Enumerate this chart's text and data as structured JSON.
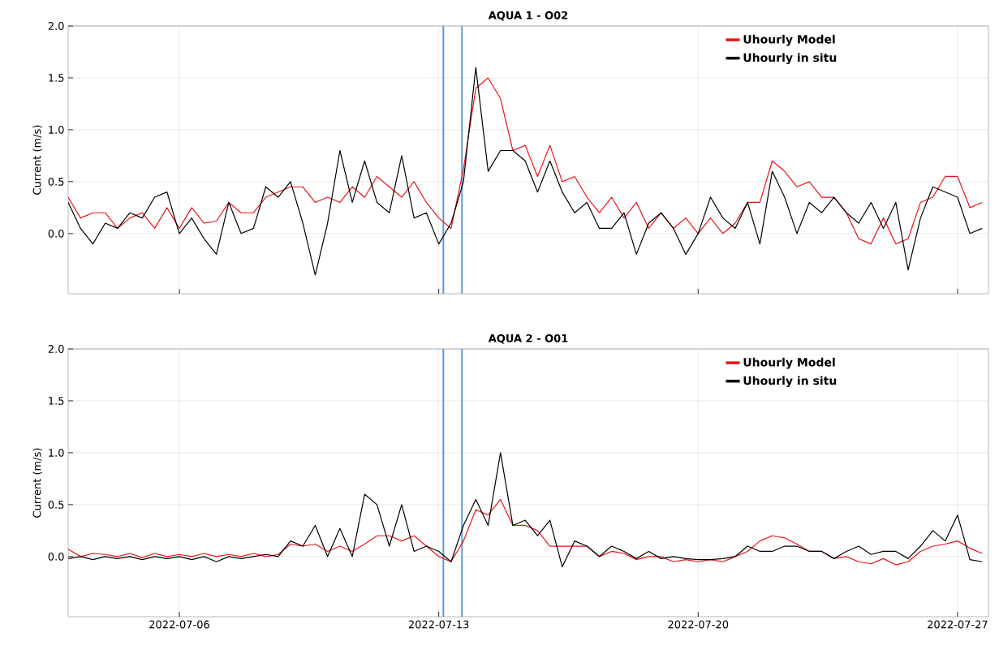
{
  "chart_data": [
    {
      "type": "line",
      "title": "AQUA 1 - O02",
      "ylabel": "Current (m/s)",
      "x": [
        "2022-07-03T00:00",
        "2022-07-03T08:00",
        "2022-07-03T16:00",
        "2022-07-04T00:00",
        "2022-07-04T08:00",
        "2022-07-04T16:00",
        "2022-07-05T00:00",
        "2022-07-05T08:00",
        "2022-07-05T16:00",
        "2022-07-06T00:00",
        "2022-07-06T08:00",
        "2022-07-06T16:00",
        "2022-07-07T00:00",
        "2022-07-07T08:00",
        "2022-07-07T16:00",
        "2022-07-08T00:00",
        "2022-07-08T08:00",
        "2022-07-08T16:00",
        "2022-07-09T00:00",
        "2022-07-09T08:00",
        "2022-07-09T16:00",
        "2022-07-10T00:00",
        "2022-07-10T08:00",
        "2022-07-10T16:00",
        "2022-07-11T00:00",
        "2022-07-11T08:00",
        "2022-07-11T16:00",
        "2022-07-12T00:00",
        "2022-07-12T08:00",
        "2022-07-12T16:00",
        "2022-07-13T00:00",
        "2022-07-13T08:00",
        "2022-07-13T16:00",
        "2022-07-14T00:00",
        "2022-07-14T08:00",
        "2022-07-14T16:00",
        "2022-07-15T00:00",
        "2022-07-15T08:00",
        "2022-07-15T16:00",
        "2022-07-16T00:00",
        "2022-07-16T08:00",
        "2022-07-16T16:00",
        "2022-07-17T00:00",
        "2022-07-17T08:00",
        "2022-07-17T16:00",
        "2022-07-18T00:00",
        "2022-07-18T08:00",
        "2022-07-18T16:00",
        "2022-07-19T00:00",
        "2022-07-19T08:00",
        "2022-07-19T16:00",
        "2022-07-20T00:00",
        "2022-07-20T08:00",
        "2022-07-20T16:00",
        "2022-07-21T00:00",
        "2022-07-21T08:00",
        "2022-07-21T16:00",
        "2022-07-22T00:00",
        "2022-07-22T08:00",
        "2022-07-22T16:00",
        "2022-07-23T00:00",
        "2022-07-23T08:00",
        "2022-07-23T16:00",
        "2022-07-24T00:00",
        "2022-07-24T08:00",
        "2022-07-24T16:00",
        "2022-07-25T00:00",
        "2022-07-25T08:00",
        "2022-07-25T16:00",
        "2022-07-26T00:00",
        "2022-07-26T08:00",
        "2022-07-26T16:00",
        "2022-07-27T00:00",
        "2022-07-27T08:00",
        "2022-07-27T16:00"
      ],
      "series": [
        {
          "name": "Uhourly Model",
          "color": "#e8141b",
          "values": [
            0.35,
            0.15,
            0.2,
            0.2,
            0.05,
            0.15,
            0.2,
            0.05,
            0.25,
            0.05,
            0.25,
            0.1,
            0.12,
            0.3,
            0.2,
            0.2,
            0.35,
            0.4,
            0.45,
            0.45,
            0.3,
            0.35,
            0.3,
            0.45,
            0.35,
            0.55,
            0.45,
            0.35,
            0.5,
            0.3,
            0.15,
            0.05,
            0.62,
            1.4,
            1.5,
            1.3,
            0.8,
            0.85,
            0.55,
            0.85,
            0.5,
            0.55,
            0.35,
            0.2,
            0.35,
            0.15,
            0.3,
            0.05,
            0.2,
            0.05,
            0.15,
            0.0,
            0.15,
            0.0,
            0.1,
            0.3,
            0.3,
            0.7,
            0.6,
            0.45,
            0.5,
            0.35,
            0.35,
            0.2,
            -0.05,
            -0.1,
            0.15,
            -0.1,
            -0.05,
            0.3,
            0.35,
            0.55,
            0.55,
            0.25,
            0.3
          ]
        },
        {
          "name": "Uhourly in situ",
          "color": "#000000",
          "values": [
            0.3,
            0.05,
            -0.1,
            0.1,
            0.05,
            0.2,
            0.15,
            0.35,
            0.4,
            0.0,
            0.15,
            -0.05,
            -0.2,
            0.3,
            0.0,
            0.05,
            0.45,
            0.35,
            0.5,
            0.1,
            -0.4,
            0.1,
            0.8,
            0.3,
            0.7,
            0.3,
            0.2,
            0.75,
            0.15,
            0.2,
            -0.1,
            0.1,
            0.5,
            1.6,
            0.6,
            0.8,
            0.8,
            0.7,
            0.4,
            0.7,
            0.4,
            0.2,
            0.3,
            0.05,
            0.05,
            0.2,
            -0.2,
            0.1,
            0.2,
            0.05,
            -0.2,
            0.0,
            0.35,
            0.15,
            0.05,
            0.3,
            -0.1,
            0.6,
            0.35,
            0.0,
            0.3,
            0.2,
            0.35,
            0.2,
            0.1,
            0.3,
            0.05,
            0.3,
            -0.35,
            0.15,
            0.45,
            0.4,
            0.35,
            0.0,
            0.05
          ]
        }
      ],
      "xlim": [
        "2022-07-03T00:00",
        "2022-07-27T20:00"
      ],
      "xticks": [
        {
          "value": "2022-07-06",
          "label": null
        },
        {
          "value": "2022-07-13",
          "label": null
        },
        {
          "value": "2022-07-20",
          "label": null
        },
        {
          "value": "2022-07-27",
          "label": null
        }
      ],
      "ylim": [
        -0.58,
        2.0
      ],
      "yticks": [
        {
          "value": 0,
          "label": "0.0"
        },
        {
          "value": 0.5,
          "label": "0.5"
        },
        {
          "value": 1.0,
          "label": "1.0"
        },
        {
          "value": 1.5,
          "label": "1.5"
        },
        {
          "value": 2.0,
          "label": "2.0"
        }
      ],
      "ref_lines": [
        {
          "axis": "x",
          "value": "2022-07-13T03:00",
          "color": "#5b9bd5"
        },
        {
          "axis": "x",
          "value": "2022-07-13T15:00",
          "color": "#5b9bd5"
        }
      ],
      "grid": true,
      "legend": "top right",
      "tick_labels": "y"
    },
    {
      "type": "line",
      "title": "AQUA 2 - O01",
      "ylabel": "Current (m/s)",
      "x": [
        "2022-07-03T00:00",
        "2022-07-03T08:00",
        "2022-07-03T16:00",
        "2022-07-04T00:00",
        "2022-07-04T08:00",
        "2022-07-04T16:00",
        "2022-07-05T00:00",
        "2022-07-05T08:00",
        "2022-07-05T16:00",
        "2022-07-06T00:00",
        "2022-07-06T08:00",
        "2022-07-06T16:00",
        "2022-07-07T00:00",
        "2022-07-07T08:00",
        "2022-07-07T16:00",
        "2022-07-08T00:00",
        "2022-07-08T08:00",
        "2022-07-08T16:00",
        "2022-07-09T00:00",
        "2022-07-09T08:00",
        "2022-07-09T16:00",
        "2022-07-10T00:00",
        "2022-07-10T08:00",
        "2022-07-10T16:00",
        "2022-07-11T00:00",
        "2022-07-11T08:00",
        "2022-07-11T16:00",
        "2022-07-12T00:00",
        "2022-07-12T08:00",
        "2022-07-12T16:00",
        "2022-07-13T00:00",
        "2022-07-13T08:00",
        "2022-07-13T16:00",
        "2022-07-14T00:00",
        "2022-07-14T08:00",
        "2022-07-14T16:00",
        "2022-07-15T00:00",
        "2022-07-15T08:00",
        "2022-07-15T16:00",
        "2022-07-16T00:00",
        "2022-07-16T08:00",
        "2022-07-16T16:00",
        "2022-07-17T00:00",
        "2022-07-17T08:00",
        "2022-07-17T16:00",
        "2022-07-18T00:00",
        "2022-07-18T08:00",
        "2022-07-18T16:00",
        "2022-07-19T00:00",
        "2022-07-19T08:00",
        "2022-07-19T16:00",
        "2022-07-20T00:00",
        "2022-07-20T08:00",
        "2022-07-20T16:00",
        "2022-07-21T00:00",
        "2022-07-21T08:00",
        "2022-07-21T16:00",
        "2022-07-22T00:00",
        "2022-07-22T08:00",
        "2022-07-22T16:00",
        "2022-07-23T00:00",
        "2022-07-23T08:00",
        "2022-07-23T16:00",
        "2022-07-24T00:00",
        "2022-07-24T08:00",
        "2022-07-24T16:00",
        "2022-07-25T00:00",
        "2022-07-25T08:00",
        "2022-07-25T16:00",
        "2022-07-26T00:00",
        "2022-07-26T08:00",
        "2022-07-26T16:00",
        "2022-07-27T00:00",
        "2022-07-27T08:00",
        "2022-07-27T16:00"
      ],
      "series": [
        {
          "name": "Uhourly Model",
          "color": "#e8141b",
          "values": [
            0.07,
            0.0,
            0.03,
            0.02,
            0.0,
            0.03,
            -0.01,
            0.03,
            0.0,
            0.02,
            0.0,
            0.03,
            0.0,
            0.02,
            0.0,
            0.03,
            0.0,
            0.02,
            0.12,
            0.1,
            0.12,
            0.05,
            0.1,
            0.05,
            0.12,
            0.2,
            0.2,
            0.15,
            0.2,
            0.1,
            0.0,
            -0.05,
            0.15,
            0.45,
            0.4,
            0.55,
            0.3,
            0.3,
            0.25,
            0.1,
            0.1,
            0.1,
            0.1,
            0.0,
            0.05,
            0.03,
            -0.03,
            0.0,
            0.0,
            -0.05,
            -0.03,
            -0.05,
            -0.03,
            -0.05,
            0.0,
            0.05,
            0.15,
            0.2,
            0.18,
            0.12,
            0.05,
            0.05,
            -0.02,
            0.0,
            -0.05,
            -0.07,
            -0.02,
            -0.08,
            -0.05,
            0.05,
            0.1,
            0.12,
            0.15,
            0.08,
            0.03
          ]
        },
        {
          "name": "Uhourly in situ",
          "color": "#000000",
          "values": [
            -0.02,
            0.0,
            -0.03,
            0.0,
            -0.02,
            0.0,
            -0.03,
            0.0,
            -0.02,
            0.0,
            -0.03,
            0.0,
            -0.05,
            0.0,
            -0.02,
            0.0,
            0.02,
            0.0,
            0.15,
            0.1,
            0.3,
            0.0,
            0.27,
            0.0,
            0.6,
            0.5,
            0.1,
            0.5,
            0.05,
            0.1,
            0.05,
            -0.05,
            0.3,
            0.55,
            0.3,
            1.0,
            0.3,
            0.35,
            0.2,
            0.35,
            -0.1,
            0.15,
            0.1,
            0.0,
            0.1,
            0.05,
            -0.02,
            0.05,
            -0.02,
            0.0,
            -0.02,
            -0.03,
            -0.03,
            -0.02,
            0.0,
            0.1,
            0.05,
            0.05,
            0.1,
            0.1,
            0.05,
            0.05,
            -0.02,
            0.05,
            0.1,
            0.02,
            0.05,
            0.05,
            -0.02,
            0.1,
            0.25,
            0.15,
            0.4,
            -0.03,
            -0.05
          ]
        }
      ],
      "xlim": [
        "2022-07-03T00:00",
        "2022-07-27T20:00"
      ],
      "xticks": [
        "2022-07-06",
        "2022-07-13",
        "2022-07-20",
        "2022-07-27"
      ],
      "ylim": [
        -0.58,
        2.0
      ],
      "yticks": [
        {
          "value": 0,
          "label": "0.0"
        },
        {
          "value": 0.5,
          "label": "0.5"
        },
        {
          "value": 1.0,
          "label": "1.0"
        },
        {
          "value": 1.5,
          "label": "1.5"
        },
        {
          "value": 2.0,
          "label": "2.0"
        }
      ],
      "ref_lines": [
        {
          "axis": "x",
          "value": "2022-07-13T03:00",
          "color": "#5b9bd5"
        },
        {
          "axis": "x",
          "value": "2022-07-13T15:00",
          "color": "#5b9bd5"
        }
      ],
      "grid": true,
      "legend": "top right"
    }
  ]
}
